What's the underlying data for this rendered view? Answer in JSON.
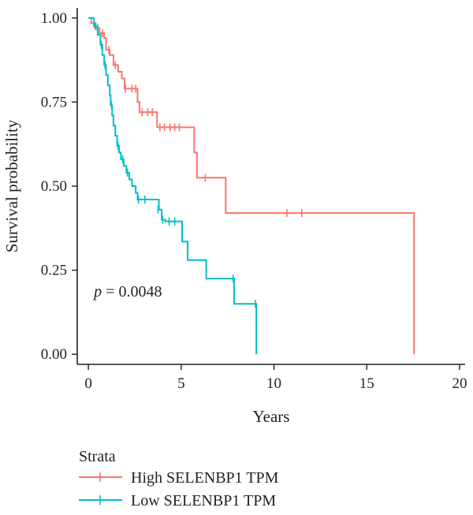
{
  "chart_data": {
    "type": "line",
    "subtype": "kaplan-meier",
    "xlabel": "Years",
    "ylabel": "Survival probability",
    "xlim": [
      -0.6,
      20.3
    ],
    "ylim": [
      -0.03,
      1.03
    ],
    "x_ticks": [
      0,
      5,
      10,
      15,
      20
    ],
    "x_tick_labels": [
      "0",
      "5",
      "10",
      "15",
      "20"
    ],
    "y_ticks": [
      0.0,
      0.25,
      0.5,
      0.75,
      1.0
    ],
    "y_tick_labels": [
      "0.00",
      "0.25",
      "0.50",
      "0.75",
      "1.00"
    ],
    "annotation": {
      "p_symbol": "p",
      "p_text": " = 0.0048",
      "x": 0.3,
      "y": 0.19
    },
    "legend": {
      "title": "Strata",
      "position": "bottom"
    },
    "series": [
      {
        "name": "High SELENBP1 TPM",
        "color": "#F8766D",
        "steps": [
          [
            0,
            1.0
          ],
          [
            0.15,
            0.985
          ],
          [
            0.35,
            0.97
          ],
          [
            0.6,
            0.955
          ],
          [
            0.85,
            0.94
          ],
          [
            0.95,
            0.905
          ],
          [
            1.15,
            0.89
          ],
          [
            1.35,
            0.86
          ],
          [
            1.6,
            0.84
          ],
          [
            1.8,
            0.82
          ],
          [
            1.95,
            0.79
          ],
          [
            2.65,
            0.75
          ],
          [
            2.75,
            0.72
          ],
          [
            3.7,
            0.675
          ],
          [
            5.7,
            0.6
          ],
          [
            5.85,
            0.525
          ],
          [
            7.4,
            0.42
          ],
          [
            17.55,
            0.0
          ]
        ],
        "end": 17.55,
        "censor": [
          [
            0.5,
            0.97
          ],
          [
            0.75,
            0.955
          ],
          [
            1.1,
            0.905
          ],
          [
            1.45,
            0.86
          ],
          [
            2.0,
            0.79
          ],
          [
            2.35,
            0.79
          ],
          [
            2.55,
            0.79
          ],
          [
            2.9,
            0.72
          ],
          [
            3.2,
            0.72
          ],
          [
            3.45,
            0.72
          ],
          [
            3.85,
            0.675
          ],
          [
            4.1,
            0.675
          ],
          [
            4.4,
            0.675
          ],
          [
            4.65,
            0.675
          ],
          [
            4.9,
            0.675
          ],
          [
            6.3,
            0.525
          ],
          [
            10.7,
            0.42
          ],
          [
            11.5,
            0.42
          ]
        ]
      },
      {
        "name": "Low SELENBP1 TPM",
        "color": "#00BFC4",
        "steps": [
          [
            0,
            1.0
          ],
          [
            0.3,
            0.975
          ],
          [
            0.5,
            0.95
          ],
          [
            0.65,
            0.92
          ],
          [
            0.75,
            0.89
          ],
          [
            0.85,
            0.86
          ],
          [
            0.95,
            0.83
          ],
          [
            1.05,
            0.8
          ],
          [
            1.15,
            0.77
          ],
          [
            1.2,
            0.74
          ],
          [
            1.28,
            0.71
          ],
          [
            1.35,
            0.68
          ],
          [
            1.45,
            0.65
          ],
          [
            1.55,
            0.62
          ],
          [
            1.65,
            0.6
          ],
          [
            1.75,
            0.58
          ],
          [
            1.9,
            0.56
          ],
          [
            2.05,
            0.54
          ],
          [
            2.2,
            0.52
          ],
          [
            2.35,
            0.5
          ],
          [
            2.55,
            0.48
          ],
          [
            2.65,
            0.46
          ],
          [
            3.8,
            0.43
          ],
          [
            3.95,
            0.4
          ],
          [
            4.15,
            0.395
          ],
          [
            5.05,
            0.335
          ],
          [
            5.35,
            0.28
          ],
          [
            6.35,
            0.225
          ],
          [
            7.85,
            0.15
          ],
          [
            9.05,
            0.0
          ]
        ],
        "end": 9.05,
        "censor": [
          [
            0.4,
            0.975
          ],
          [
            0.7,
            0.92
          ],
          [
            0.9,
            0.86
          ],
          [
            1.25,
            0.74
          ],
          [
            1.6,
            0.62
          ],
          [
            1.85,
            0.58
          ],
          [
            2.1,
            0.54
          ],
          [
            2.7,
            0.46
          ],
          [
            3.05,
            0.46
          ],
          [
            3.75,
            0.43
          ],
          [
            4.0,
            0.4
          ],
          [
            4.35,
            0.395
          ],
          [
            4.65,
            0.395
          ],
          [
            7.8,
            0.225
          ],
          [
            9.0,
            0.15
          ]
        ]
      }
    ]
  }
}
